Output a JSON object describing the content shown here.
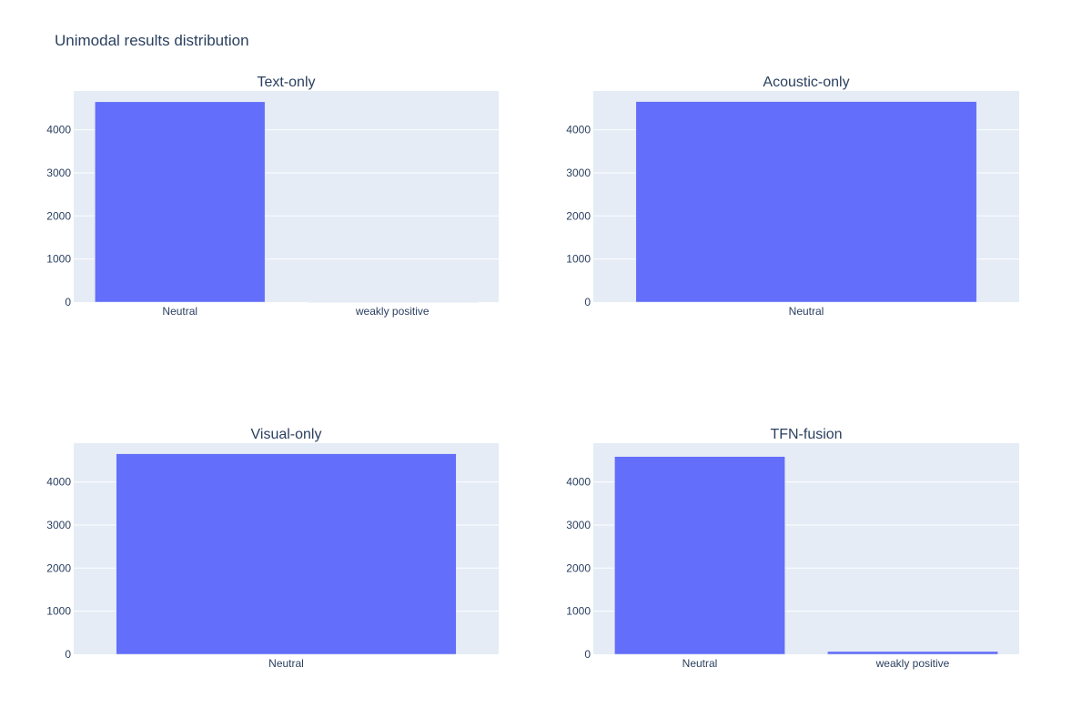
{
  "figure": {
    "title": "Unimodal results distribution",
    "background": "#ffffff",
    "plot_background": "#e5ecf6",
    "grid_color": "#ffffff",
    "bar_color": "#636efa",
    "text_color": "#2a3f5f"
  },
  "chart_data": [
    {
      "type": "bar",
      "title": "Text-only",
      "categories": [
        "Neutral",
        "weakly positive"
      ],
      "values": [
        4650,
        5
      ],
      "ylim": [
        0,
        4900
      ],
      "yticks": [
        0,
        1000,
        2000,
        3000,
        4000
      ],
      "xlabel": "",
      "ylabel": "",
      "grid": true
    },
    {
      "type": "bar",
      "title": "Acoustic-only",
      "categories": [
        "Neutral"
      ],
      "values": [
        4655
      ],
      "ylim": [
        0,
        4900
      ],
      "yticks": [
        0,
        1000,
        2000,
        3000,
        4000
      ],
      "xlabel": "",
      "ylabel": "",
      "grid": true
    },
    {
      "type": "bar",
      "title": "Visual-only",
      "categories": [
        "Neutral"
      ],
      "values": [
        4655
      ],
      "ylim": [
        0,
        4900
      ],
      "yticks": [
        0,
        1000,
        2000,
        3000,
        4000
      ],
      "xlabel": "",
      "ylabel": "",
      "grid": true
    },
    {
      "type": "bar",
      "title": "TFN-fusion",
      "categories": [
        "Neutral",
        "weakly positive"
      ],
      "values": [
        4590,
        65
      ],
      "ylim": [
        0,
        4900
      ],
      "yticks": [
        0,
        1000,
        2000,
        3000,
        4000
      ],
      "xlabel": "",
      "ylabel": "",
      "grid": true
    }
  ]
}
